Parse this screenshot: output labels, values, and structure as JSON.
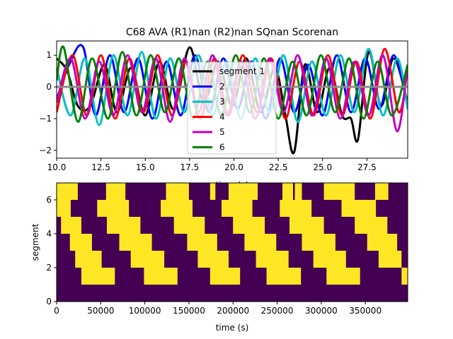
{
  "chart_data": [
    {
      "type": "line",
      "title": "C68 AVA (R1)nan (R2)nan SQnan Scorenan",
      "xlabel": "time (s)",
      "ylabel": "",
      "xlim": [
        10.0,
        29.8
      ],
      "ylim": [
        -2.25,
        1.45
      ],
      "xticks": [
        10.0,
        12.5,
        15.0,
        17.5,
        20.0,
        22.5,
        25.0,
        27.5
      ],
      "xtick_labels": [
        "10.0",
        "12.5",
        "15.0",
        "17.5",
        "20.0",
        "22.5",
        "25.0",
        "27.5"
      ],
      "yticks": [
        1,
        0,
        -1,
        -2
      ],
      "ytick_labels": [
        "1",
        "0",
        "−1",
        "−2"
      ],
      "grid": false,
      "legend_location": "upper-center",
      "reference_line": {
        "y": 0,
        "color": "#8c8c8c"
      },
      "series": [
        {
          "name": "segment 1",
          "color": "#000000",
          "x": [
            10,
            10.6,
            11.2,
            11.9,
            12.7,
            13.4,
            14.2,
            15.0,
            15.8,
            16.6,
            17.5,
            18.3,
            19.1,
            19.9,
            20.7,
            21.5,
            22.3,
            22.9,
            23.4,
            24.0,
            24.7,
            25.4,
            26.1,
            26.6,
            27.0,
            27.6,
            28.3,
            29.0,
            29.8
          ],
          "y": [
            0.9,
            0.5,
            -0.6,
            -0.6,
            0.7,
            -0.8,
            0.6,
            -0.9,
            0.8,
            -0.7,
            1.25,
            -0.5,
            0.8,
            -0.6,
            0.9,
            -0.8,
            0.6,
            -0.9,
            -2.05,
            0.7,
            -0.8,
            0.6,
            -0.9,
            -1.0,
            -1.65,
            1.1,
            -0.6,
            0.9,
            -0.5
          ]
        },
        {
          "name": "2",
          "color": "#0000ff",
          "x": [
            10,
            10.7,
            11.5,
            12.2,
            13.0,
            13.8,
            14.6,
            15.4,
            16.2,
            17.0,
            17.8,
            18.6,
            19.4,
            20.2,
            21.0,
            21.8,
            22.6,
            23.4,
            24.2,
            25.0,
            25.8,
            26.6,
            27.4,
            28.2,
            29.0,
            29.8
          ],
          "y": [
            -0.4,
            0.7,
            1.25,
            -0.9,
            1.0,
            -0.8,
            0.9,
            -1.0,
            0.8,
            -0.9,
            1.0,
            -0.8,
            0.9,
            -0.7,
            0.8,
            -1.0,
            0.9,
            -0.8,
            0.7,
            -0.9,
            1.0,
            -0.8,
            0.9,
            -0.7,
            1.0,
            -0.6
          ]
        },
        {
          "name": "3",
          "color": "#00bfbf",
          "x": [
            10,
            10.8,
            11.6,
            12.4,
            13.2,
            14.0,
            14.8,
            15.6,
            16.4,
            17.2,
            18.0,
            18.8,
            19.6,
            20.4,
            21.2,
            22.0,
            22.8,
            23.6,
            24.4,
            25.2,
            26.0,
            26.8,
            27.6,
            28.4,
            29.2,
            29.8
          ],
          "y": [
            0.6,
            -0.9,
            0.9,
            -1.2,
            1.0,
            -0.9,
            1.1,
            -1.0,
            0.9,
            -0.8,
            1.0,
            -0.9,
            0.8,
            -1.0,
            0.9,
            -0.8,
            1.0,
            -1.1,
            0.8,
            -0.9,
            1.0,
            -0.8,
            1.2,
            -0.9,
            0.9,
            -0.7
          ]
        },
        {
          "name": "4",
          "color": "#ff0000",
          "x": [
            10,
            10.9,
            11.7,
            12.5,
            13.3,
            14.1,
            14.9,
            15.7,
            16.5,
            17.3,
            18.1,
            18.9,
            19.7,
            20.5,
            21.3,
            22.1,
            22.9,
            23.7,
            24.5,
            25.3,
            26.1,
            26.9,
            27.7,
            28.5,
            29.3,
            29.8
          ],
          "y": [
            -0.8,
            1.0,
            -0.9,
            1.0,
            -1.0,
            0.9,
            -0.8,
            1.0,
            -0.9,
            0.8,
            -1.0,
            0.9,
            -0.9,
            1.0,
            -0.8,
            0.9,
            -1.0,
            0.8,
            -0.9,
            1.0,
            -0.9,
            0.8,
            -1.0,
            1.2,
            -0.8,
            0.6
          ]
        },
        {
          "name": "5",
          "color": "#bf00bf",
          "x": [
            10,
            10.8,
            11.6,
            12.4,
            13.2,
            14.0,
            14.8,
            15.6,
            16.4,
            17.2,
            18.0,
            18.8,
            19.6,
            20.4,
            21.2,
            22.0,
            22.8,
            23.6,
            24.4,
            25.2,
            26.0,
            26.8,
            27.6,
            28.4,
            29.2,
            29.8
          ],
          "y": [
            -0.5,
            0.9,
            -1.0,
            0.8,
            -0.9,
            1.0,
            -0.8,
            0.9,
            -1.1,
            0.9,
            -0.8,
            1.0,
            -0.9,
            0.8,
            -1.0,
            0.9,
            -0.8,
            1.0,
            -0.9,
            0.9,
            -1.0,
            0.8,
            -0.9,
            1.0,
            -1.4,
            0.7
          ]
        },
        {
          "name": "6",
          "color": "#008000",
          "x": [
            10,
            10.4,
            11.2,
            12.0,
            12.9,
            13.7,
            14.5,
            15.3,
            16.1,
            16.9,
            17.7,
            18.5,
            19.3,
            20.1,
            20.9,
            21.7,
            22.5,
            23.3,
            24.1,
            24.9,
            25.7,
            26.5,
            27.3,
            28.1,
            28.9,
            29.8
          ],
          "y": [
            0.2,
            1.25,
            -1.1,
            0.9,
            -1.0,
            1.1,
            -0.9,
            1.0,
            -0.8,
            0.9,
            -1.0,
            0.8,
            -0.9,
            1.0,
            -0.8,
            0.9,
            -1.0,
            0.8,
            -0.9,
            1.0,
            -0.8,
            0.9,
            -1.0,
            0.8,
            -0.9,
            0.7
          ]
        }
      ]
    },
    {
      "type": "heatmap",
      "xlabel": "time (s)",
      "ylabel": "segment",
      "xlim": [
        0,
        398000
      ],
      "ylim": [
        0,
        7
      ],
      "xticks": [
        0,
        50000,
        100000,
        150000,
        200000,
        250000,
        300000,
        350000
      ],
      "xtick_labels": [
        "0",
        "50000",
        "100000",
        "150000",
        "200000",
        "250000",
        "300000",
        "350000"
      ],
      "yticks": [
        0,
        2,
        4,
        6
      ],
      "ytick_labels": [
        "0",
        "2",
        "4",
        "6"
      ],
      "colors": {
        "off": "#440154",
        "on": "#fde725"
      },
      "rows": [
        {
          "segment": 0,
          "on": []
        },
        {
          "segment": 1,
          "on": [
            [
              28000,
              66000
            ],
            [
              99000,
              137000
            ],
            [
              174000,
              208000
            ],
            [
              238000,
              277000
            ],
            [
              306000,
              344000
            ],
            [
              391000,
              398000
            ]
          ]
        },
        {
          "segment": 2,
          "on": [
            [
              21000,
              51000
            ],
            [
              84000,
              122000
            ],
            [
              160000,
              195000
            ],
            [
              226000,
              263000
            ],
            [
              291000,
              328000
            ],
            [
              365000,
              391000
            ]
          ]
        },
        {
          "segment": 3,
          "on": [
            [
              15000,
              40000
            ],
            [
              71000,
              108000
            ],
            [
              148000,
              182000
            ],
            [
              213000,
              249000
            ],
            [
              278000,
              316000
            ],
            [
              352000,
              386000
            ]
          ]
        },
        {
          "segment": 4,
          "on": [
            [
              5000,
              28000
            ],
            [
              57000,
              95000
            ],
            [
              133000,
              168000
            ],
            [
              200000,
              236000
            ],
            [
              264000,
              303000
            ],
            [
              338000,
              375000
            ]
          ]
        },
        {
          "segment": 5,
          "on": [
            [
              0,
              16000
            ],
            [
              46000,
              82000
            ],
            [
              118000,
              154000
            ],
            [
              187000,
              222000
            ],
            [
              253000,
              289000
            ],
            [
              323000,
              362000
            ]
          ]
        },
        {
          "segment": 6,
          "on": [
            [
              0,
              24000
            ],
            [
              56000,
              78000
            ],
            [
              124000,
              150000
            ],
            [
              174000,
              180000
            ],
            [
              195000,
              228000
            ],
            [
              256000,
              268000
            ],
            [
              270000,
              278000
            ],
            [
              303000,
              338000
            ],
            [
              361000,
              376000
            ]
          ]
        }
      ]
    }
  ]
}
